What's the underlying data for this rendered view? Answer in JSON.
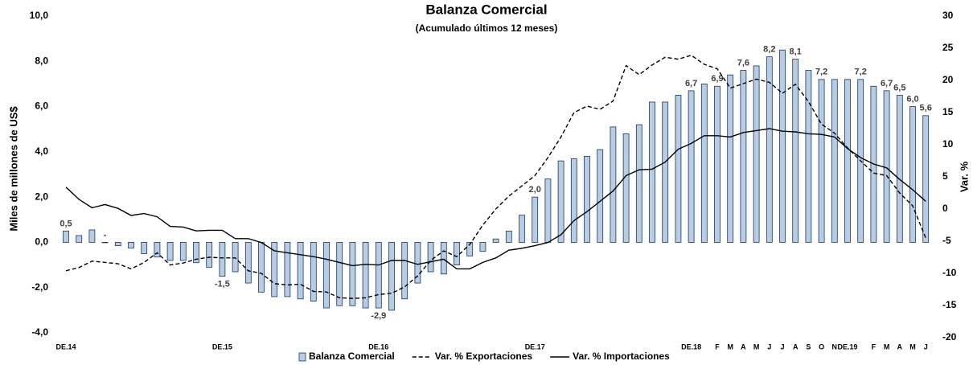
{
  "chart_data": {
    "type": "bar",
    "title": "Balanza Comercial",
    "subtitle": "(Acumulado últimos 12 meses)",
    "y_label": "Miles de millones de US$",
    "y2_label": "Var. %",
    "categories": [
      "DE.14",
      null,
      null,
      null,
      null,
      null,
      null,
      null,
      null,
      null,
      null,
      null,
      "DE.15",
      null,
      null,
      null,
      null,
      null,
      null,
      null,
      null,
      null,
      null,
      null,
      "DE.16",
      null,
      null,
      null,
      null,
      null,
      null,
      null,
      null,
      null,
      null,
      null,
      "DE.17",
      null,
      null,
      null,
      null,
      null,
      null,
      null,
      null,
      null,
      null,
      null,
      "DE.18",
      null,
      "F",
      "M",
      "A",
      "M",
      "J",
      "J",
      "A",
      "S",
      "O",
      "N",
      "DE.19",
      null,
      "F",
      "M",
      "A",
      "M",
      "J"
    ],
    "ylim": [
      -4,
      10
    ],
    "yticks": [
      {
        "value": -4,
        "label": "-4,0"
      },
      {
        "value": -2,
        "label": "-2,0"
      },
      {
        "value": 0,
        "label": "0,0"
      },
      {
        "value": 2,
        "label": "2,0"
      },
      {
        "value": 4,
        "label": "4,0"
      },
      {
        "value": 6,
        "label": "6,0"
      },
      {
        "value": 8,
        "label": "8,0"
      },
      {
        "value": 10,
        "label": "10,0"
      }
    ],
    "y2lim": [
      -20,
      30
    ],
    "y2ticks": [
      -20,
      -15,
      -10,
      -5,
      0,
      5,
      10,
      15,
      20,
      25,
      30
    ],
    "series": [
      {
        "name": "Balanza Comercial",
        "type": "bar",
        "color": "#b8cce4",
        "values": [
          0.5,
          0.3,
          0.55,
          0,
          -0.15,
          -0.25,
          -0.5,
          -0.65,
          -0.8,
          -0.8,
          -0.9,
          -1.1,
          -1.5,
          -1.3,
          -1.8,
          -2.2,
          -2.4,
          -2.4,
          -2.5,
          -2.6,
          -2.9,
          -2.8,
          -2.8,
          -2.9,
          -2.9,
          -3.0,
          -2.5,
          -1.8,
          -1.3,
          -1.4,
          -1.0,
          -0.6,
          -0.4,
          0.15,
          0.5,
          1.2,
          2.0,
          2.8,
          3.6,
          3.7,
          3.8,
          4.1,
          5.1,
          4.8,
          5.2,
          6.2,
          6.2,
          6.5,
          6.7,
          7.0,
          6.9,
          7.4,
          7.6,
          7.8,
          8.2,
          8.5,
          8.1,
          7.6,
          7.2,
          7.2,
          7.2,
          7.2,
          6.9,
          6.7,
          6.5,
          6.0,
          5.6
        ],
        "value_labels": [
          "0,5",
          null,
          null,
          "-",
          null,
          null,
          null,
          null,
          null,
          null,
          null,
          null,
          "-1,5",
          null,
          null,
          null,
          null,
          null,
          null,
          null,
          null,
          null,
          null,
          null,
          "-2,9",
          null,
          null,
          null,
          null,
          null,
          null,
          null,
          null,
          null,
          null,
          null,
          "2,0",
          null,
          null,
          null,
          null,
          null,
          null,
          null,
          null,
          null,
          null,
          null,
          "6,7",
          null,
          "6,9",
          null,
          "7,6",
          null,
          "8,2",
          null,
          "8,1",
          null,
          "7,2",
          null,
          null,
          "7,2",
          null,
          "6,7",
          "6,5",
          "6,0",
          "5,6"
        ]
      },
      {
        "name": "Var. % Exportaciones",
        "type": "line",
        "axis": "y2",
        "linestyle": "dashed",
        "color": "#000000",
        "values": [
          -9.6,
          -9.1,
          -8.1,
          -8.3,
          -8.5,
          -9.3,
          -8.3,
          -6.8,
          -8.7,
          -8.4,
          -7.8,
          -7.5,
          -7.6,
          -7.6,
          -9.6,
          -10.0,
          -11.6,
          -11.8,
          -11.7,
          -12.8,
          -12.9,
          -13.8,
          -13.9,
          -13.8,
          -13.3,
          -13.1,
          -12.1,
          -10.4,
          -8.0,
          -6.5,
          -7.4,
          -5.5,
          -2.5,
          0.0,
          2.0,
          3.6,
          5.2,
          8.0,
          11.2,
          15.0,
          16.0,
          15.5,
          16.8,
          22.3,
          20.9,
          22.4,
          23.6,
          23.3,
          23.9,
          22.5,
          21.8,
          18.8,
          19.5,
          20.2,
          19.7,
          18.0,
          19.4,
          16.7,
          13.2,
          11.8,
          9.5,
          7.5,
          5.6,
          5.2,
          2.5,
          0.5,
          -4.5
        ]
      },
      {
        "name": "Var. % Importaciones",
        "type": "line",
        "axis": "y2",
        "linestyle": "solid",
        "color": "#000000",
        "values": [
          3.4,
          1.5,
          0.2,
          0.7,
          0.1,
          -1.0,
          -0.7,
          -1.2,
          -2.7,
          -2.8,
          -3.4,
          -3.3,
          -3.3,
          -4.6,
          -4.6,
          -5.2,
          -6.5,
          -6.8,
          -7.1,
          -7.4,
          -7.8,
          -8.3,
          -8.8,
          -8.6,
          -8.7,
          -8.0,
          -8.0,
          -8.6,
          -8.2,
          -7.8,
          -9.3,
          -9.3,
          -8.3,
          -7.6,
          -6.4,
          -6.1,
          -5.7,
          -5.2,
          -4.0,
          -1.8,
          -0.4,
          1.2,
          2.8,
          5.2,
          6.1,
          6.2,
          7.3,
          9.3,
          10.2,
          11.4,
          11.4,
          11.2,
          11.9,
          12.2,
          12.5,
          12.1,
          12.0,
          11.7,
          11.6,
          11.2,
          9.4,
          8.0,
          7.0,
          6.4,
          4.6,
          3.0,
          1.2
        ]
      }
    ]
  }
}
